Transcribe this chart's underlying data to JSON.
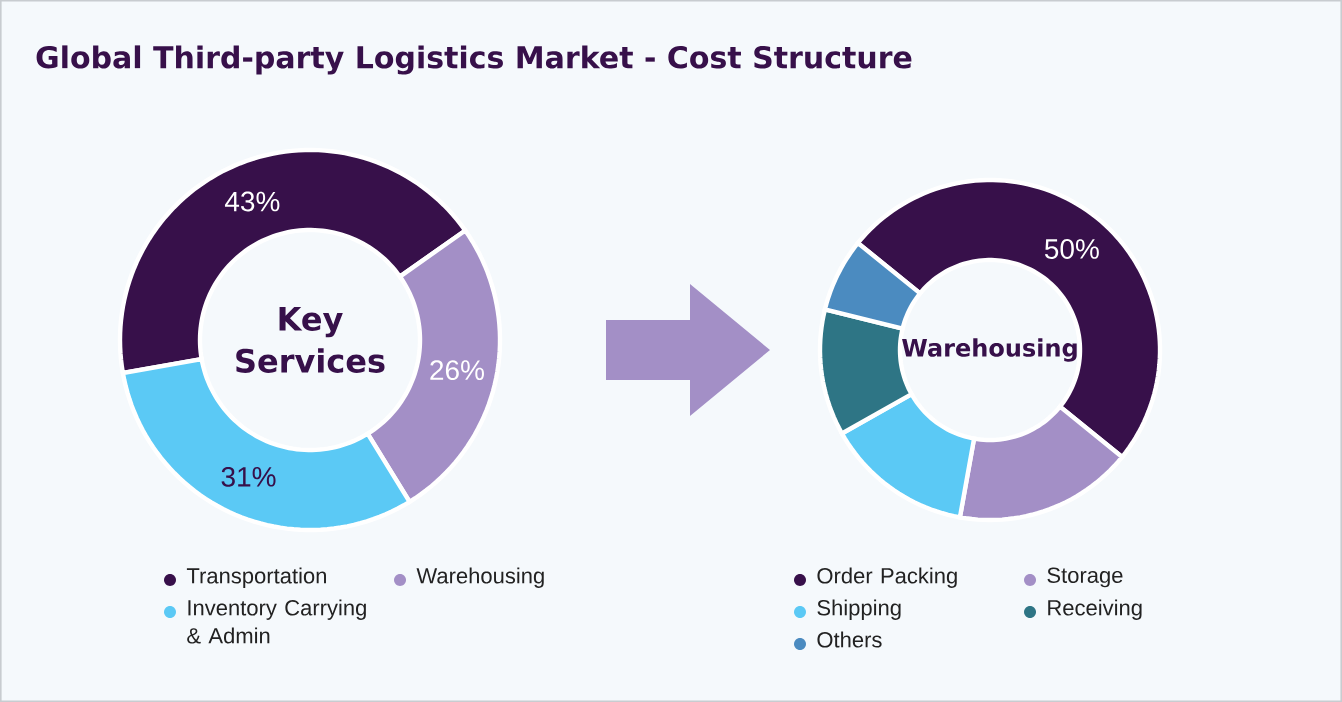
{
  "chart_data": [
    {
      "type": "donut",
      "title": "Global Third-party Logistics Market - Cost Structure",
      "annotations": [
        "Key Services"
      ],
      "categories": [
        "Transportation",
        "Warehousing",
        "Inventory Carrying & Admin"
      ],
      "values": [
        43,
        26,
        31
      ],
      "value_labels": [
        "43%",
        "26%",
        "31%"
      ],
      "colors": [
        "#37104a",
        "#a38fc6",
        "#5bc9f5"
      ],
      "legend": "bottom"
    },
    {
      "type": "donut",
      "annotations": [
        "Warehousing"
      ],
      "categories": [
        "Order Packing",
        "Storage",
        "Shipping",
        "Receiving",
        "Others"
      ],
      "values": [
        50,
        17,
        14,
        12,
        7
      ],
      "value_labels": [
        "50%",
        null,
        null,
        null,
        null
      ],
      "colors": [
        "#37104a",
        "#a38fc6",
        "#5bc9f5",
        "#2e7585",
        "#4b8bc0"
      ],
      "legend": "bottom"
    }
  ]
}
